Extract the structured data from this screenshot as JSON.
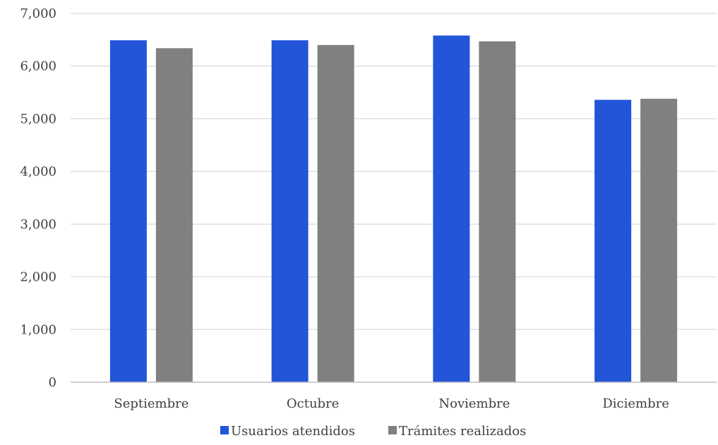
{
  "chart_data": {
    "type": "bar",
    "title": "",
    "xlabel": "",
    "ylabel": "",
    "categories": [
      "Septiembre",
      "Octubre",
      "Noviembre",
      "Diciembre"
    ],
    "series": [
      {
        "name": "Usuarios atendidos",
        "color": "#2255d8",
        "values": [
          6490,
          6490,
          6580,
          5360
        ]
      },
      {
        "name": "Trámites realizados",
        "color": "#808080",
        "values": [
          6340,
          6400,
          6470,
          5380
        ]
      }
    ],
    "ylim": [
      0,
      7000
    ],
    "yticks": [
      0,
      1000,
      2000,
      3000,
      4000,
      5000,
      6000,
      7000
    ],
    "ytick_labels": [
      "0",
      "1,000",
      "2,000",
      "3,000",
      "4,000",
      "5,000",
      "6,000",
      "7,000"
    ],
    "grid": true,
    "legend_position": "bottom"
  }
}
